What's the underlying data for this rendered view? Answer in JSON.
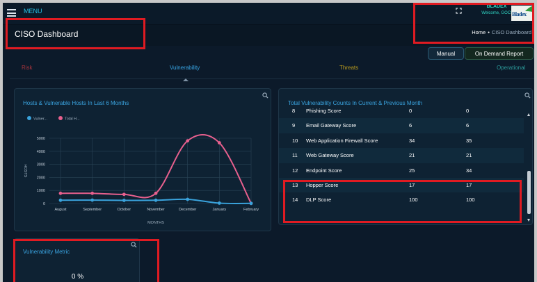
{
  "topbar": {
    "menu_label": "MENU",
    "expand_icon": "expand-icon",
    "user_name": "BLADEX",
    "welcome": "Welcome, GOC!",
    "logo_text": "Bladex"
  },
  "header": {
    "title": "CISO Dashboard",
    "breadcrumb": {
      "home": "Home",
      "separator": "•",
      "current": "CISO Dashboard"
    }
  },
  "actions": {
    "manual": "Manual",
    "on_demand": "On Demand Report"
  },
  "tabs": [
    {
      "label": "Risk",
      "color": "#a8343c"
    },
    {
      "label": "Vulnerability",
      "color": "#38a6e6",
      "active": true
    },
    {
      "label": "Threats",
      "color": "#b99a1d"
    },
    {
      "label": "Operational",
      "color": "#2c9a9a"
    }
  ],
  "hosts_card": {
    "title": "Hosts & Vulnerable Hosts In Last 6 Months"
  },
  "chart_data": {
    "type": "line",
    "title": "Hosts & Vulnerable Hosts In Last 6 Months",
    "xlabel": "MONTHS",
    "ylabel": "HOSTS",
    "categories": [
      "August",
      "September",
      "October",
      "November",
      "December",
      "January",
      "February"
    ],
    "y_ticks": [
      "0",
      "1000",
      "2000",
      "3000",
      "4000",
      "5000"
    ],
    "ylim": [
      0,
      5000
    ],
    "grid": true,
    "smooth": true,
    "legend": {
      "position": "top-left"
    },
    "series": [
      {
        "name": "Vulner...",
        "color": "#3aa3dc",
        "values": [
          250,
          260,
          240,
          250,
          320,
          30,
          10
        ]
      },
      {
        "name": "Total H...",
        "color": "#e8608e",
        "values": [
          780,
          780,
          700,
          780,
          4800,
          4650,
          10
        ]
      }
    ]
  },
  "vuln_card": {
    "title": "Total Vulnerability Counts In Current & Previous Month",
    "rows": [
      {
        "no": "8",
        "name": "Phishing Score",
        "current": "0",
        "previous": "0"
      },
      {
        "no": "9",
        "name": "Email Gateway Score",
        "current": "6",
        "previous": "6"
      },
      {
        "no": "10",
        "name": "Web Application Firewall Score",
        "current": "34",
        "previous": "35"
      },
      {
        "no": "11",
        "name": "Web Gateway Score",
        "current": "21",
        "previous": "21"
      },
      {
        "no": "12",
        "name": "Endpoint Score",
        "current": "25",
        "previous": "34"
      },
      {
        "no": "13",
        "name": "Hopper Score",
        "current": "17",
        "previous": "17"
      },
      {
        "no": "14",
        "name": "DLP Score",
        "current": "100",
        "previous": "100"
      }
    ]
  },
  "metric_card": {
    "title": "Vulnerability Metric",
    "value": "0 %"
  },
  "colors": {
    "background": "#0c1a2a",
    "card": "#0e2233",
    "accent": "#3aa4e0",
    "highlight": "#e01b22"
  }
}
